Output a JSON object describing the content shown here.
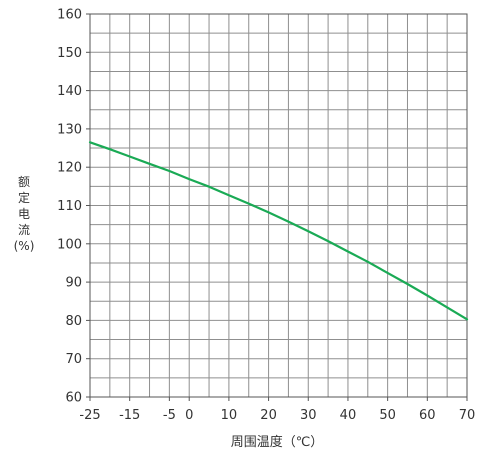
{
  "chart_data": {
    "type": "line",
    "title": "",
    "xlabel": "周围温度（℃）",
    "ylabel_lines": [
      "额",
      "定",
      "电",
      "流",
      "(%)"
    ],
    "xlim": [
      -25,
      70
    ],
    "ylim": [
      60,
      160
    ],
    "x_ticks": [
      -25,
      -15,
      -5,
      0,
      10,
      20,
      30,
      40,
      50,
      60,
      70
    ],
    "x_tick_labels": [
      "-25",
      "-15",
      "-5",
      "0",
      "10",
      "20",
      "30",
      "40",
      "50",
      "60",
      "70"
    ],
    "y_ticks": [
      60,
      70,
      80,
      90,
      100,
      110,
      120,
      130,
      140,
      150,
      160
    ],
    "y_tick_labels": [
      "60",
      "70",
      "80",
      "90",
      "100",
      "110",
      "120",
      "130",
      "140",
      "150",
      "160"
    ],
    "grid": true,
    "grid_x_step": 5,
    "grid_y_step": 5,
    "series": [
      {
        "color": "#1aaa55",
        "x": [
          -25,
          -20,
          -15,
          -10,
          -5,
          0,
          5,
          10,
          15,
          20,
          25,
          30,
          35,
          40,
          45,
          50,
          55,
          60,
          65,
          70
        ],
        "y": [
          126.5,
          124.7,
          122.8,
          120.9,
          119.0,
          116.9,
          114.9,
          112.7,
          110.5,
          108.2,
          105.8,
          103.3,
          100.7,
          98.0,
          95.3,
          92.4,
          89.5,
          86.5,
          83.4,
          80.3
        ]
      }
    ]
  }
}
